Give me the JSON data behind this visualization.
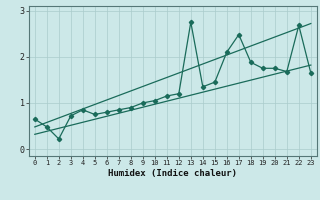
{
  "xlabel": "Humidex (Indice chaleur)",
  "bg_color": "#cce8e8",
  "grid_color": "#aacccc",
  "line_color": "#1a6b5a",
  "xlim": [
    -0.5,
    23.5
  ],
  "ylim": [
    -0.15,
    3.1
  ],
  "yticks": [
    0,
    1,
    2,
    3
  ],
  "xticks": [
    0,
    1,
    2,
    3,
    4,
    5,
    6,
    7,
    8,
    9,
    10,
    11,
    12,
    13,
    14,
    15,
    16,
    17,
    18,
    19,
    20,
    21,
    22,
    23
  ],
  "series1_x": [
    0,
    1,
    2,
    3,
    4,
    5,
    6,
    7,
    8,
    9,
    10,
    11,
    12,
    13,
    14,
    15,
    16,
    17,
    18,
    19,
    20,
    21,
    22,
    23
  ],
  "series1_y": [
    0.65,
    0.48,
    0.22,
    0.72,
    0.85,
    0.75,
    0.8,
    0.85,
    0.9,
    1.0,
    1.05,
    1.15,
    1.2,
    2.75,
    1.35,
    1.45,
    2.1,
    2.48,
    1.88,
    1.75,
    1.75,
    1.68,
    2.68,
    1.65
  ],
  "trend1_x": [
    0,
    23
  ],
  "trend1_y": [
    0.48,
    2.72
  ],
  "trend2_x": [
    0,
    23
  ],
  "trend2_y": [
    0.32,
    1.82
  ]
}
